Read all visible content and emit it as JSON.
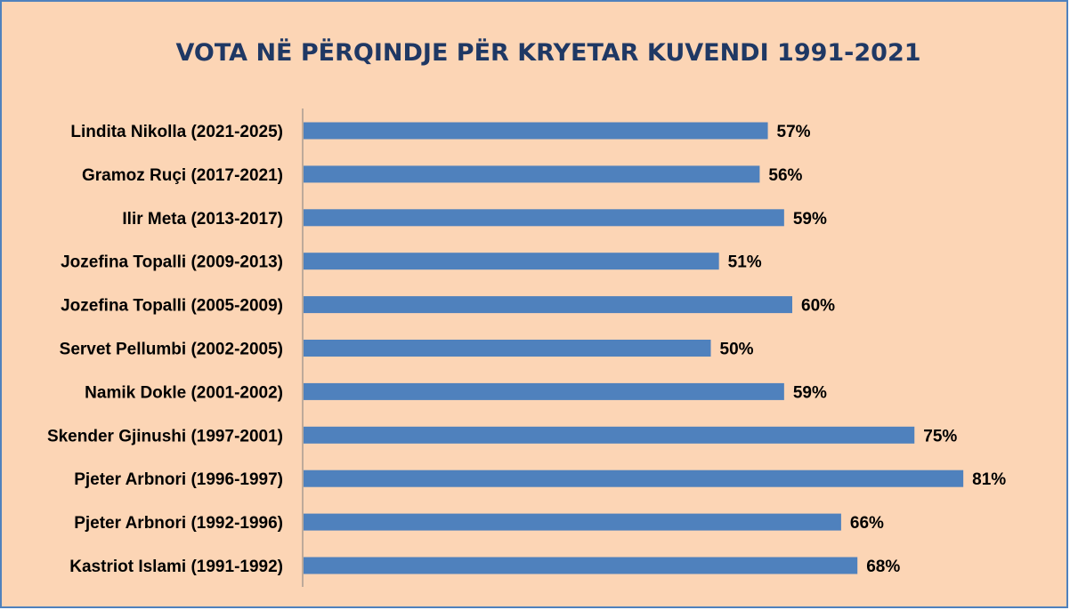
{
  "chart_data": {
    "type": "bar",
    "orientation": "horizontal",
    "title": "VOTA NË PËRQINDJE PËR KRYETAR KUVENDI 1991-2021",
    "categories": [
      "Lindita Nikolla (2021-2025)",
      "Gramoz Ruçi (2017-2021)",
      "Ilir Meta (2013-2017)",
      "Jozefina Topalli (2009-2013)",
      "Jozefina Topalli (2005-2009)",
      "Servet Pellumbi (2002-2005)",
      "Namik Dokle (2001-2002)",
      "Skender Gjinushi (1997-2001)",
      "Pjeter Arbnori  (1996-1997)",
      "Pjeter Arbnori  (1992-1996)",
      "Kastriot Islami (1991-1992)"
    ],
    "values": [
      57,
      56,
      59,
      51,
      60,
      50,
      59,
      75,
      81,
      66,
      68
    ],
    "data_labels": [
      "57%",
      "56%",
      "59%",
      "51%",
      "60%",
      "50%",
      "59%",
      "75%",
      "81%",
      "66%",
      "68%"
    ],
    "xlim": [
      0,
      85
    ],
    "grid": false,
    "legend": "none",
    "colors": {
      "bar": "#4f81bd",
      "background": "#fcd5b5",
      "border": "#4f81bd",
      "title": "#1f3864",
      "axis": "#7f7f7f"
    }
  }
}
